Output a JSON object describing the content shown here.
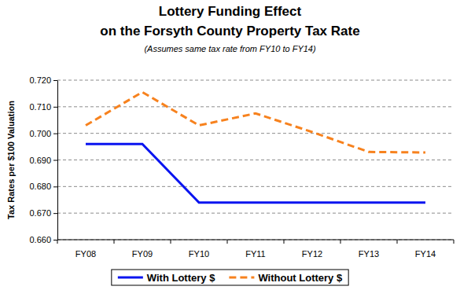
{
  "chart_data": {
    "type": "line",
    "title": [
      "Lottery Funding Effect",
      "on the Forsyth County Property Tax Rate"
    ],
    "subtitle": "(Assumes same tax rate from FY10 to FY14)",
    "y_label": "Tax Rates per $100 Valuation",
    "categories": [
      "FY08",
      "FY09",
      "FY10",
      "FY11",
      "FY12",
      "FY13",
      "FY14"
    ],
    "series": [
      {
        "name": "With Lottery $",
        "color": "#0a14f0",
        "line_style": "solid",
        "values": [
          0.696,
          0.696,
          0.674,
          0.674,
          0.674,
          0.674,
          0.674
        ]
      },
      {
        "name": "Without Lottery $",
        "color": "#f7821e",
        "line_style": "dashed",
        "values": [
          0.703,
          0.7155,
          0.703,
          0.7075,
          0.7005,
          0.693,
          0.6928
        ]
      }
    ],
    "ylim": [
      0.66,
      0.72
    ],
    "yticks": [
      {
        "value": 0.66,
        "label": "0.660"
      },
      {
        "value": 0.67,
        "label": "0.670"
      },
      {
        "value": 0.68,
        "label": "0.680"
      },
      {
        "value": 0.69,
        "label": "0.690"
      },
      {
        "value": 0.7,
        "label": "0.700"
      },
      {
        "value": 0.71,
        "label": "0.710"
      },
      {
        "value": 0.72,
        "label": "0.720"
      }
    ],
    "grid": true,
    "legend": "bottom"
  }
}
